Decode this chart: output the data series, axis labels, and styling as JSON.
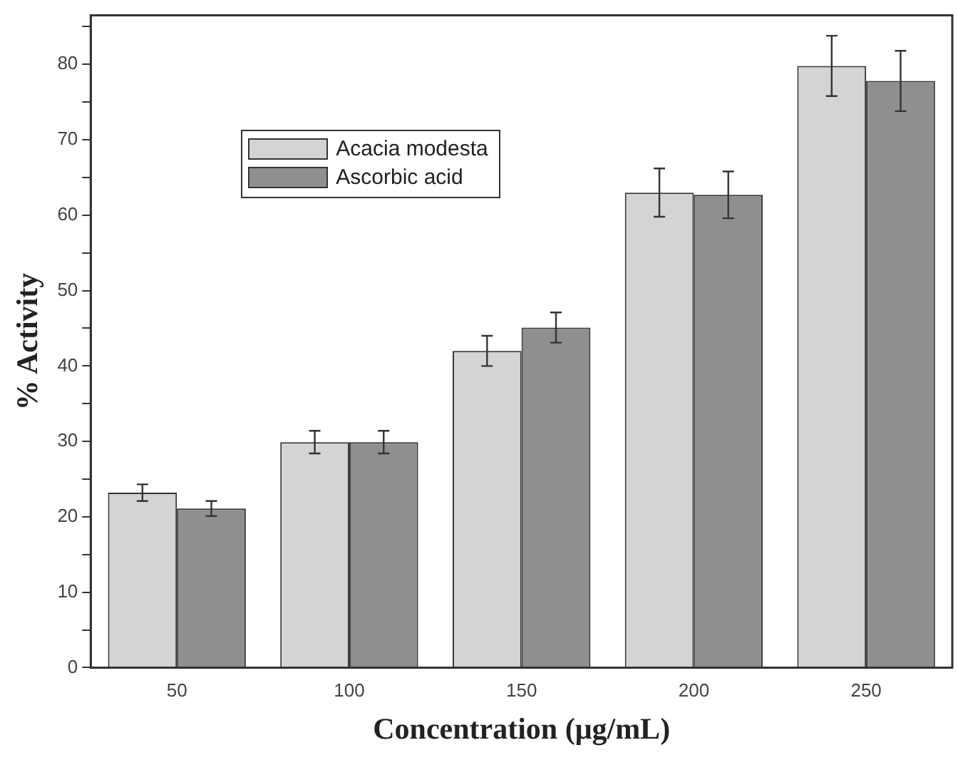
{
  "chart_data": {
    "type": "bar",
    "xlabel": "Concentration (μg/mL)",
    "ylabel": "% Activity",
    "categories": [
      "50",
      "100",
      "150",
      "200",
      "250"
    ],
    "series": [
      {
        "name": "Acacia modesta",
        "color": "#d4d4d4",
        "values": [
          23.2,
          29.9,
          42.0,
          63.0,
          79.8
        ],
        "errors": [
          1.1,
          1.5,
          2.0,
          3.2,
          4.0
        ]
      },
      {
        "name": "Ascorbic acid",
        "color": "#8f8f8f",
        "values": [
          21.1,
          29.9,
          45.1,
          62.7,
          77.8
        ],
        "errors": [
          1.0,
          1.5,
          2.0,
          3.1,
          4.0
        ]
      }
    ],
    "ylim": [
      0,
      86.5
    ],
    "yticks": [
      0,
      {
        "value": 5,
        "label": null
      },
      10,
      {
        "value": 15,
        "label": null
      },
      20,
      {
        "value": 25,
        "label": null
      },
      30,
      {
        "value": 35,
        "label": null
      },
      40,
      {
        "value": 45,
        "label": null
      },
      50,
      {
        "value": 55,
        "label": null
      },
      60,
      {
        "value": 65,
        "label": null
      },
      70,
      {
        "value": 75,
        "label": null
      },
      80,
      {
        "value": 85,
        "label": null
      }
    ],
    "grid": false,
    "legend": "top left"
  }
}
